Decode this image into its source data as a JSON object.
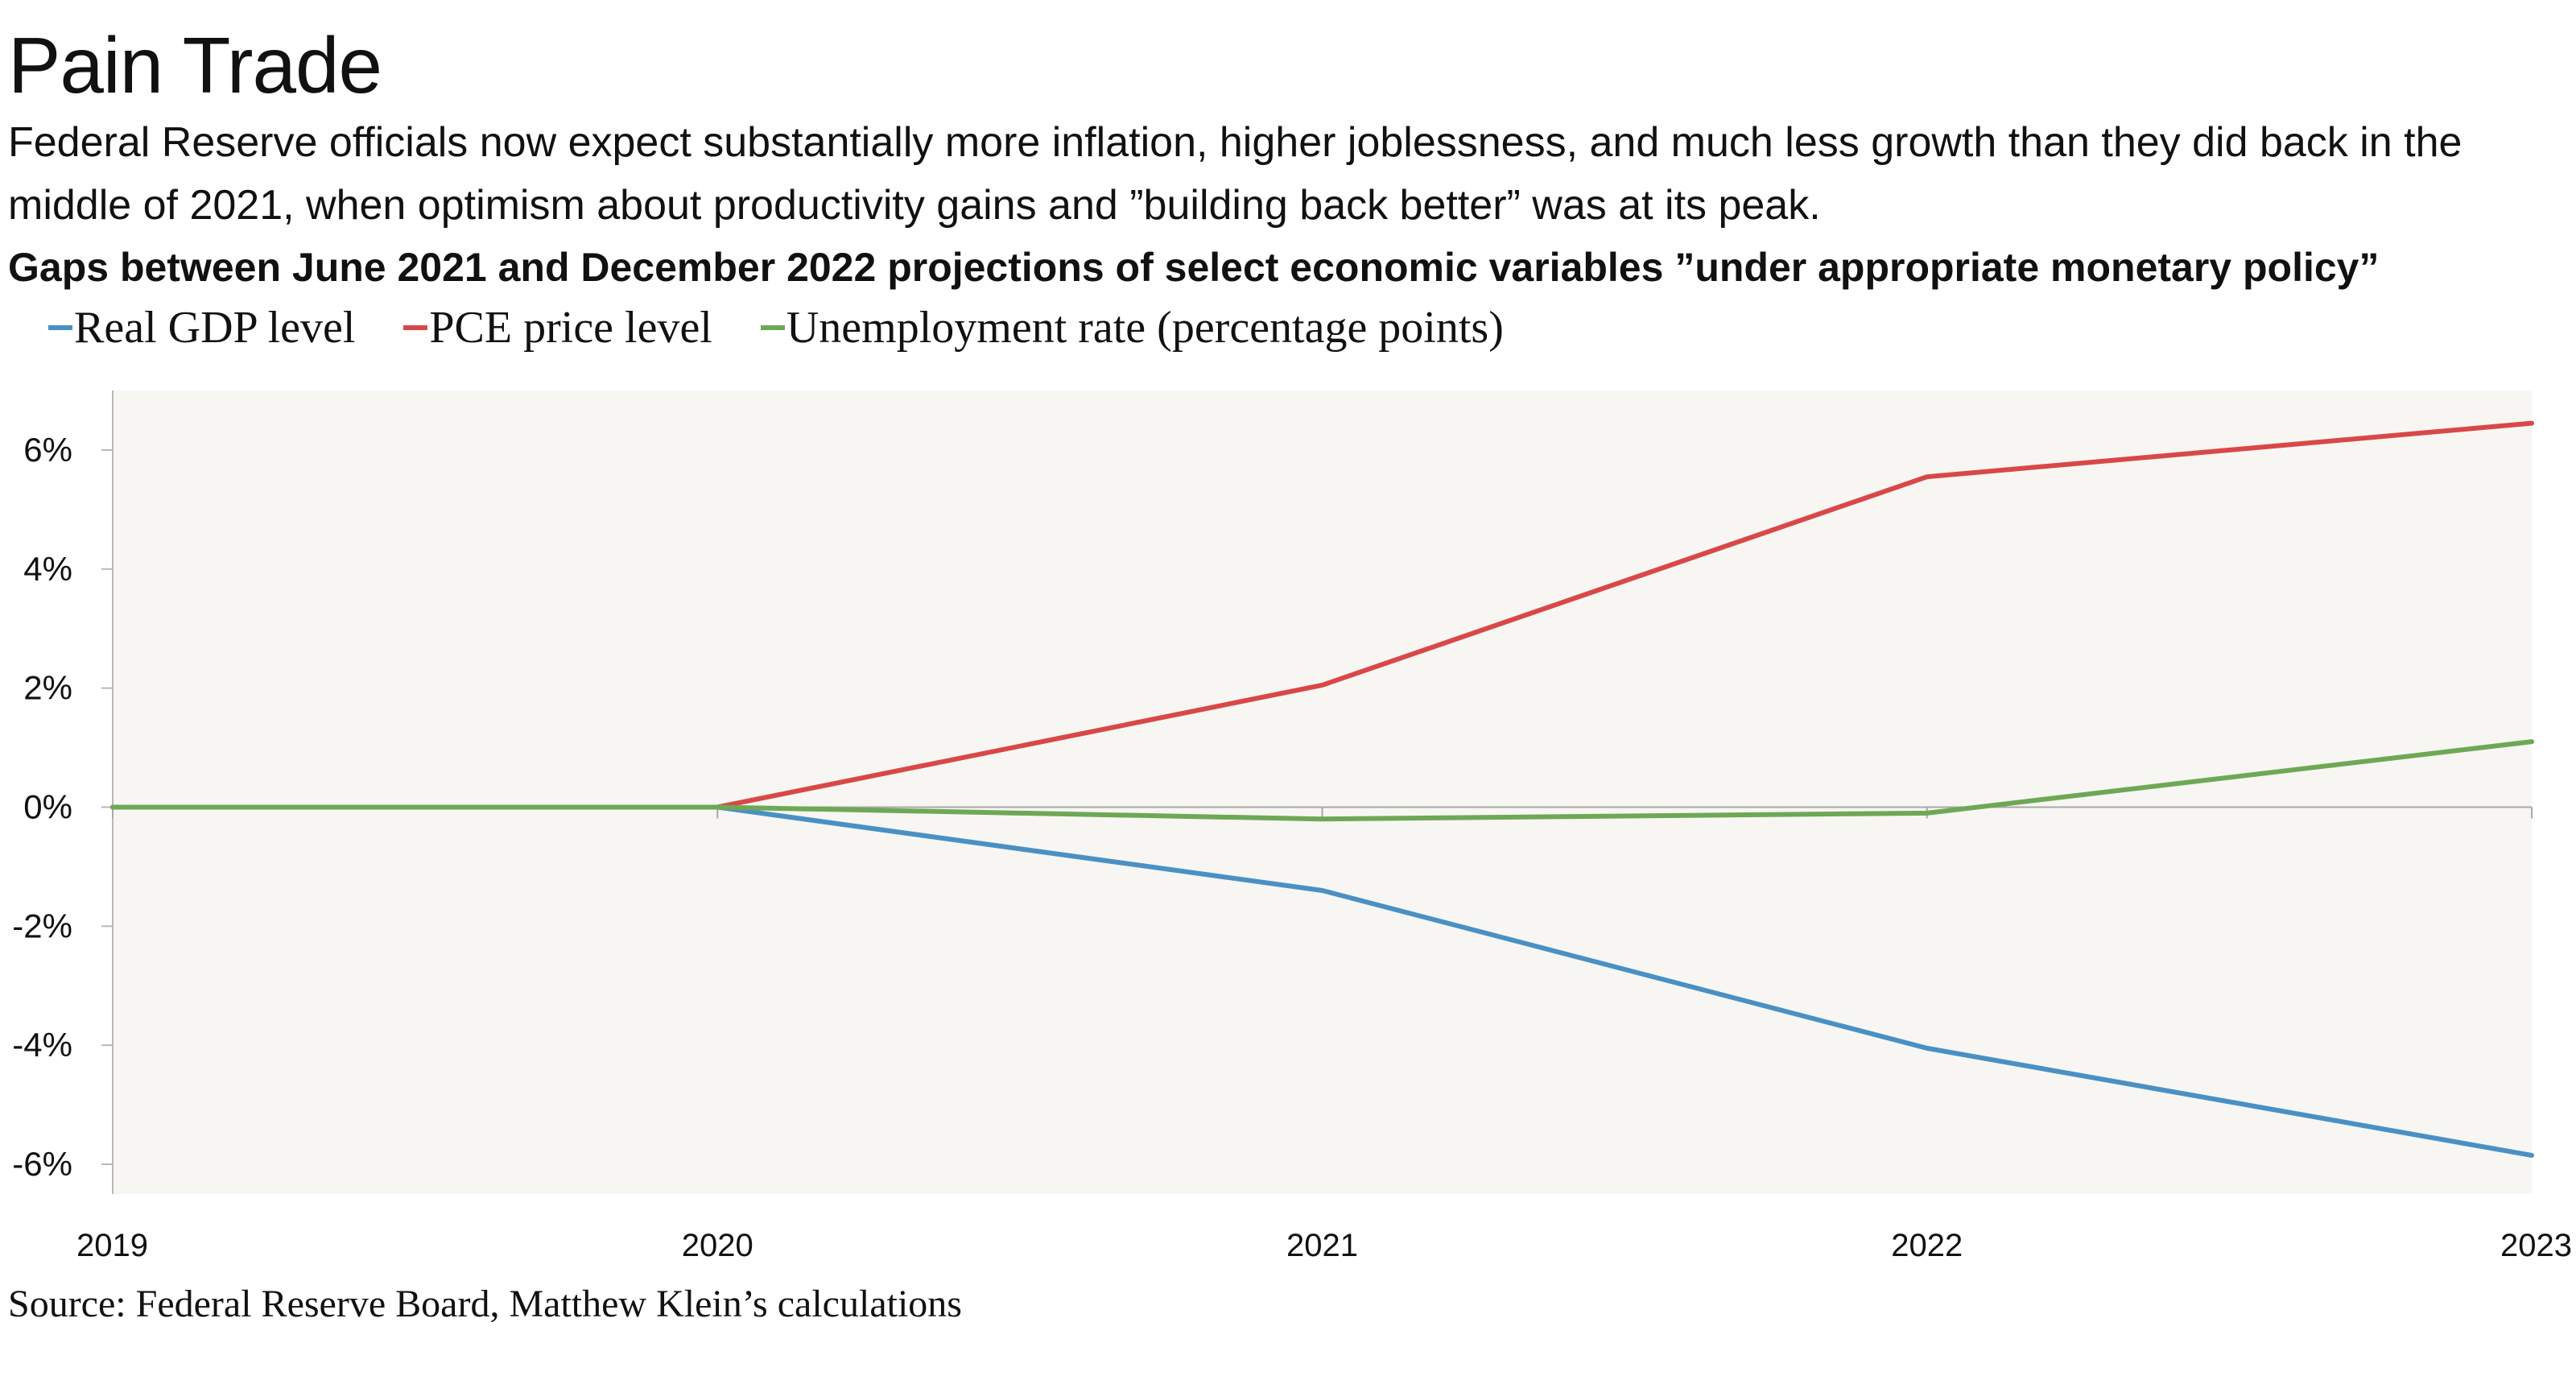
{
  "title": "Pain Trade",
  "subtitle": "Federal Reserve officials now expect substantially more inflation, higher joblessness, and much less growth than they did back in the middle of 2021, when optimism about productivity gains and ”building back better” was at its peak.",
  "source": "Source: Federal Reserve Board, Matthew Klein’s calculations",
  "chart_data": {
    "type": "line",
    "title": "Gaps between June 2021 and December 2022 projections of select economic variables ”under appropriate monetary policy”",
    "xlabel": "",
    "ylabel": "",
    "x": [
      2019,
      2020,
      2021,
      2022,
      2023
    ],
    "x_tick_labels": [
      "2019",
      "2020",
      "2021",
      "2022",
      "2023"
    ],
    "ylim": [
      -6.5,
      7
    ],
    "y_ticks": [
      -6,
      -4,
      -2,
      0,
      2,
      4,
      6
    ],
    "y_tick_labels": [
      "-6%",
      "-4%",
      "-2%",
      "0%",
      "2%",
      "4%",
      "6%"
    ],
    "grid": false,
    "legend_position": "top-left",
    "plot_background": "#f7f6f2",
    "series": [
      {
        "name": "Real GDP level",
        "color": "#4a90c4",
        "values": [
          0,
          0,
          -1.4,
          -4.05,
          -5.85
        ]
      },
      {
        "name": "PCE price level",
        "color": "#d94848",
        "values": [
          0,
          0,
          2.05,
          5.55,
          6.45
        ]
      },
      {
        "name": "Unemployment rate (percentage points)",
        "color": "#6ea856",
        "values": [
          0,
          0,
          -0.2,
          -0.1,
          1.1
        ]
      }
    ]
  }
}
